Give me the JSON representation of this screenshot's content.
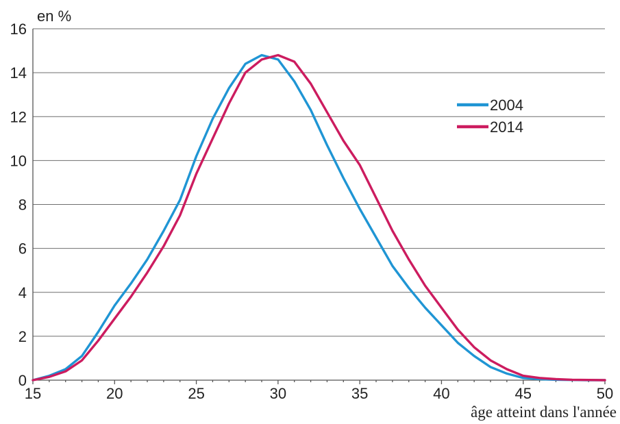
{
  "chart_data": {
    "type": "line",
    "title": "",
    "ylabel": "en %",
    "xlabel": "âge atteint dans l'année",
    "xlim": [
      15,
      50
    ],
    "ylim": [
      0,
      16
    ],
    "x_ticks": [
      15,
      20,
      25,
      30,
      35,
      40,
      45,
      50
    ],
    "y_ticks": [
      0,
      2,
      4,
      6,
      8,
      10,
      12,
      14,
      16
    ],
    "grid": "horizontal",
    "legend_position": "top-right",
    "x": [
      15,
      16,
      17,
      18,
      19,
      20,
      21,
      22,
      23,
      24,
      25,
      26,
      27,
      28,
      29,
      30,
      31,
      32,
      33,
      34,
      35,
      36,
      37,
      38,
      39,
      40,
      41,
      42,
      43,
      44,
      45,
      46,
      47,
      48,
      49,
      50
    ],
    "series": [
      {
        "name": "2004",
        "color": "#1f95d4",
        "values": [
          0.0,
          0.2,
          0.5,
          1.1,
          2.2,
          3.4,
          4.4,
          5.5,
          6.8,
          8.2,
          10.2,
          11.9,
          13.3,
          14.4,
          14.8,
          14.6,
          13.6,
          12.3,
          10.7,
          9.2,
          7.8,
          6.5,
          5.2,
          4.2,
          3.3,
          2.5,
          1.7,
          1.1,
          0.6,
          0.3,
          0.1,
          0.05,
          0.02,
          0.01,
          0.0,
          0.0
        ]
      },
      {
        "name": "2014",
        "color": "#cc1c5f",
        "values": [
          0.0,
          0.15,
          0.4,
          0.9,
          1.8,
          2.8,
          3.8,
          4.9,
          6.1,
          7.5,
          9.4,
          11.0,
          12.6,
          14.0,
          14.6,
          14.8,
          14.5,
          13.5,
          12.2,
          10.9,
          9.8,
          8.3,
          6.8,
          5.5,
          4.3,
          3.3,
          2.3,
          1.5,
          0.9,
          0.5,
          0.2,
          0.1,
          0.05,
          0.02,
          0.01,
          0.0
        ]
      }
    ]
  }
}
